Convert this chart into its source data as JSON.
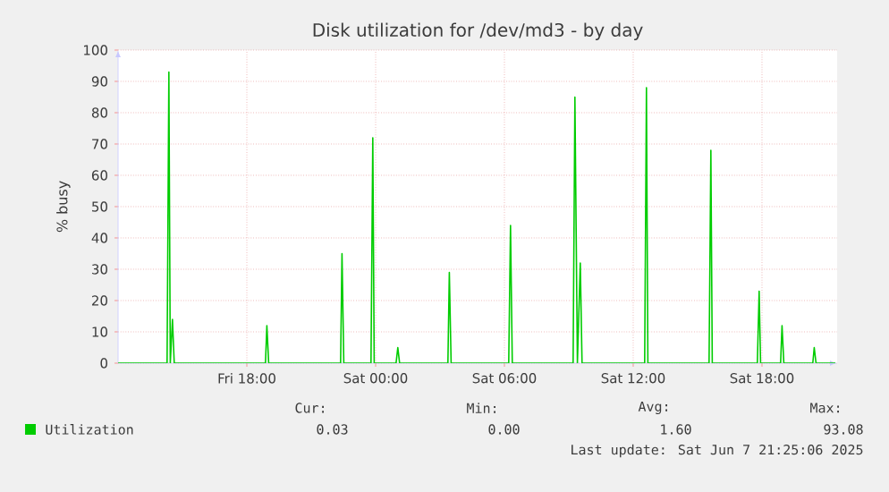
{
  "chart_data": {
    "type": "line",
    "title": "Disk utilization for /dev/md3 - by day",
    "ylabel": "% busy",
    "xlim": [
      "2025-06-06T12:00",
      "2025-06-07T21:30"
    ],
    "ylim": [
      0,
      100
    ],
    "xticks": [
      {
        "value": "2025-06-06T18:00",
        "label": "Fri 18:00"
      },
      {
        "value": "2025-06-07T00:00",
        "label": "Sat 00:00"
      },
      {
        "value": "2025-06-07T06:00",
        "label": "Sat 06:00"
      },
      {
        "value": "2025-06-07T12:00",
        "label": "Sat 12:00"
      },
      {
        "value": "2025-06-07T18:00",
        "label": "Sat 18:00"
      }
    ],
    "yticks": [
      0,
      10,
      20,
      30,
      40,
      50,
      60,
      70,
      80,
      90,
      100
    ],
    "grid": true,
    "legend": "bottom",
    "marker": "none",
    "line_style": "solid",
    "series": [
      {
        "name": "Utilization",
        "color": "#00cc00",
        "x": [
          "2025-06-06T12:00",
          "2025-06-06T14:17",
          "2025-06-06T14:22",
          "2025-06-06T14:26",
          "2025-06-06T14:32",
          "2025-06-06T14:37",
          "2025-06-06T18:52",
          "2025-06-06T18:56",
          "2025-06-06T19:01",
          "2025-06-06T22:22",
          "2025-06-06T22:26",
          "2025-06-06T22:31",
          "2025-06-06T23:47",
          "2025-06-06T23:52",
          "2025-06-06T23:56",
          "2025-06-07T00:57",
          "2025-06-07T01:02",
          "2025-06-07T01:07",
          "2025-06-07T03:22",
          "2025-06-07T03:26",
          "2025-06-07T03:31",
          "2025-06-07T06:12",
          "2025-06-07T06:17",
          "2025-06-07T06:22",
          "2025-06-07T09:12",
          "2025-06-07T09:17",
          "2025-06-07T09:24",
          "2025-06-07T09:32",
          "2025-06-07T09:37",
          "2025-06-07T12:32",
          "2025-06-07T12:37",
          "2025-06-07T12:41",
          "2025-06-07T15:32",
          "2025-06-07T15:37",
          "2025-06-07T15:41",
          "2025-06-07T17:47",
          "2025-06-07T17:52",
          "2025-06-07T17:56",
          "2025-06-07T18:52",
          "2025-06-07T18:56",
          "2025-06-07T19:01",
          "2025-06-07T20:22",
          "2025-06-07T20:26",
          "2025-06-07T20:31",
          "2025-06-07T21:25"
        ],
        "values": [
          0,
          0,
          93,
          0,
          14,
          0,
          0,
          12,
          0,
          0,
          35,
          0,
          0,
          72,
          0,
          0,
          5,
          0,
          0,
          29,
          0,
          0,
          44,
          0,
          0,
          85,
          0,
          32,
          0,
          0,
          88,
          0,
          0,
          68,
          0,
          0,
          23,
          0,
          0,
          12,
          0,
          0,
          5,
          0,
          0
        ]
      }
    ],
    "annotations": [
      "Cur:",
      "0.03",
      "Min:",
      "0.00",
      "Avg:",
      "1.60",
      "Max:",
      "93.08",
      "Last update: Sat Jun  7 21:25:06 2025"
    ]
  }
}
